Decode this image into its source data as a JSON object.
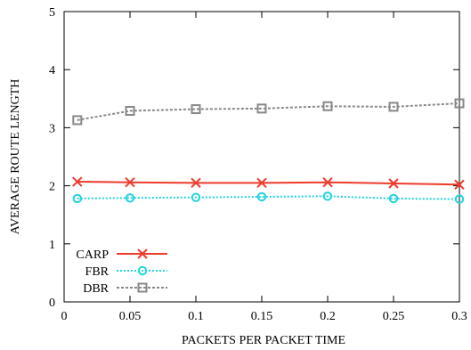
{
  "chart_data": {
    "type": "line",
    "title": "",
    "xlabel": "PACKETS PER PACKET TIME",
    "ylabel": "AVERAGE ROUTE LENGTH",
    "xlim": [
      0,
      0.3
    ],
    "ylim": [
      0,
      5
    ],
    "xticks": [
      0,
      0.05,
      0.1,
      0.15,
      0.2,
      0.25,
      0.3
    ],
    "xtick_labels": [
      "0",
      "0.05",
      "0.1",
      "0.15",
      "0.2",
      "0.25",
      "0.3"
    ],
    "yticks": [
      0,
      1,
      2,
      3,
      4,
      5
    ],
    "ytick_labels": [
      "0",
      "1",
      "2",
      "3",
      "4",
      "5"
    ],
    "grid": false,
    "legend_position": "bottom-left",
    "x": [
      0.01,
      0.05,
      0.1,
      0.15,
      0.2,
      0.25,
      0.3
    ],
    "series": [
      {
        "name": "CARP",
        "color": "#ee3b2c",
        "marker": "x",
        "line_style": "solid",
        "values": [
          2.07,
          2.06,
          2.05,
          2.05,
          2.06,
          2.04,
          2.02
        ]
      },
      {
        "name": "FBR",
        "color": "#22d3dd",
        "marker": "circle",
        "line_style": "dotted",
        "values": [
          1.78,
          1.79,
          1.8,
          1.81,
          1.82,
          1.78,
          1.77
        ]
      },
      {
        "name": "DBR",
        "color": "#888888",
        "marker": "square",
        "line_style": "dashed",
        "values": [
          3.13,
          3.29,
          3.32,
          3.33,
          3.37,
          3.36,
          3.42
        ]
      }
    ]
  }
}
